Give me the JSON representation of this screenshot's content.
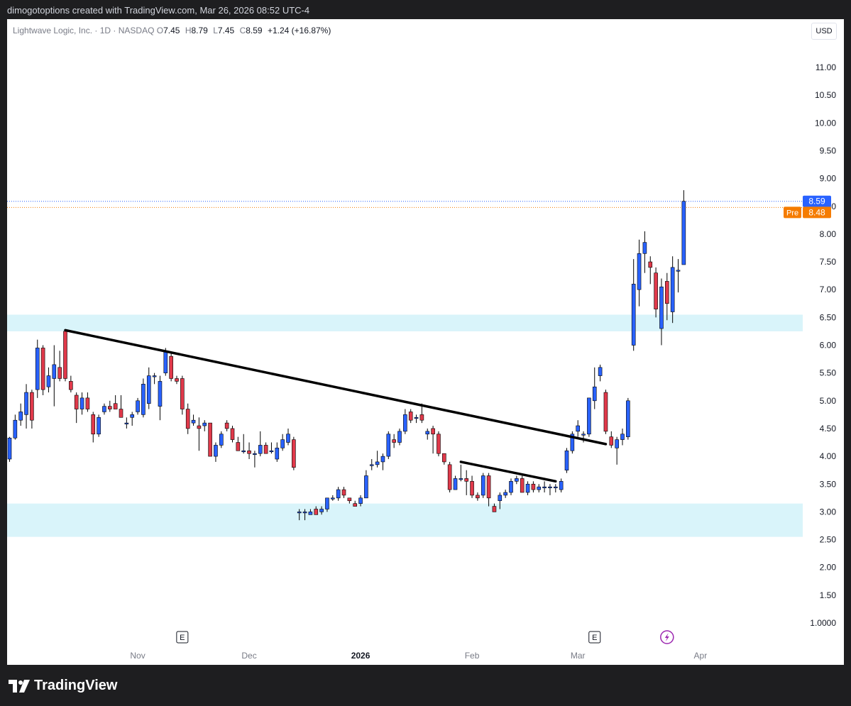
{
  "header": {
    "attribution": "dimogotoptions created with TradingView.com, Mar 26, 2026 08:52 UTC-4"
  },
  "legend": {
    "symbol": "Lightwave Logic, Inc. · 1D · NASDAQ",
    "o_label": "O",
    "o": "7.45",
    "h_label": "H",
    "h": "8.79",
    "l_label": "L",
    "l": "7.45",
    "c_label": "C",
    "c": "8.59",
    "change": "+1.24 (+16.87%)"
  },
  "currency_button": "USD",
  "price_tags": {
    "last": "8.59",
    "pre_label": "Pre",
    "pre": "8.48"
  },
  "footer": {
    "brand": "TradingView"
  },
  "colors": {
    "up": "#2962ff",
    "down": "#e0394a",
    "zone": "#d9f4fa",
    "trendline": "#000000",
    "last_tag": "#2962ff",
    "pre_tag": "#f57c00"
  },
  "chart_data": {
    "type": "candlestick",
    "y_axis_ticks": [
      "1.0000",
      "1.50",
      "2.00",
      "2.50",
      "3.00",
      "3.50",
      "4.00",
      "4.50",
      "5.00",
      "5.50",
      "6.00",
      "6.50",
      "7.00",
      "7.50",
      "8.00",
      "8.50",
      "9.00",
      "9.50",
      "10.00",
      "10.50",
      "11.00"
    ],
    "y_tick_values": [
      1.0,
      1.5,
      2.0,
      2.5,
      3.0,
      3.5,
      4.0,
      4.5,
      5.0,
      5.5,
      6.0,
      6.5,
      7.0,
      7.5,
      8.0,
      8.5,
      9.0,
      9.5,
      10.0,
      10.5,
      11.0
    ],
    "x_axis_ticks": [
      {
        "label": "Nov",
        "bar": 23,
        "bold": false
      },
      {
        "label": "Dec",
        "bar": 43,
        "bold": false
      },
      {
        "label": "2026",
        "bar": 63,
        "bold": true
      },
      {
        "label": "Feb",
        "bar": 83,
        "bold": false
      },
      {
        "label": "Mar",
        "bar": 102,
        "bold": false
      },
      {
        "label": "Apr",
        "bar": 124,
        "bold": false
      }
    ],
    "event_markers": [
      {
        "type": "earnings",
        "label": "E",
        "bar": 31
      },
      {
        "type": "earnings",
        "label": "E",
        "bar": 105
      },
      {
        "type": "dividend-icon",
        "label": "",
        "bar": 118
      }
    ],
    "zones": [
      {
        "low": 6.25,
        "high": 6.55
      },
      {
        "low": 2.55,
        "high": 3.15
      }
    ],
    "trendlines": [
      {
        "from": {
          "bar": 10,
          "price": 6.27
        },
        "to": {
          "bar": 107,
          "price": 4.22
        }
      },
      {
        "from": {
          "bar": 81,
          "price": 3.9
        },
        "to": {
          "bar": 98,
          "price": 3.55
        }
      }
    ],
    "last_price": 8.59,
    "pre_price": 8.48,
    "candles": [
      {
        "o": 3.95,
        "h": 4.35,
        "l": 3.9,
        "c": 4.33
      },
      {
        "o": 4.33,
        "h": 4.75,
        "l": 4.3,
        "c": 4.65
      },
      {
        "o": 4.65,
        "h": 4.95,
        "l": 4.55,
        "c": 4.8
      },
      {
        "o": 4.75,
        "h": 5.3,
        "l": 4.5,
        "c": 5.15
      },
      {
        "o": 5.15,
        "h": 5.2,
        "l": 4.5,
        "c": 4.65
      },
      {
        "o": 5.2,
        "h": 6.1,
        "l": 5.05,
        "c": 5.95
      },
      {
        "o": 5.95,
        "h": 6.0,
        "l": 5.1,
        "c": 5.2
      },
      {
        "o": 5.25,
        "h": 5.6,
        "l": 5.15,
        "c": 5.45
      },
      {
        "o": 5.4,
        "h": 6.0,
        "l": 4.9,
        "c": 5.65
      },
      {
        "o": 5.6,
        "h": 5.9,
        "l": 5.35,
        "c": 5.4
      },
      {
        "o": 6.25,
        "h": 6.27,
        "l": 5.35,
        "c": 5.4
      },
      {
        "o": 5.35,
        "h": 5.45,
        "l": 5.15,
        "c": 5.2
      },
      {
        "o": 5.1,
        "h": 5.15,
        "l": 4.6,
        "c": 4.85
      },
      {
        "o": 4.85,
        "h": 5.15,
        "l": 4.75,
        "c": 5.05
      },
      {
        "o": 5.05,
        "h": 5.15,
        "l": 4.8,
        "c": 4.85
      },
      {
        "o": 4.75,
        "h": 4.8,
        "l": 4.25,
        "c": 4.4
      },
      {
        "o": 4.4,
        "h": 4.75,
        "l": 4.35,
        "c": 4.7
      },
      {
        "o": 4.8,
        "h": 4.95,
        "l": 4.75,
        "c": 4.9
      },
      {
        "o": 4.9,
        "h": 5.0,
        "l": 4.8,
        "c": 4.85
      },
      {
        "o": 4.95,
        "h": 5.1,
        "l": 4.85,
        "c": 4.85
      },
      {
        "o": 4.85,
        "h": 5.1,
        "l": 4.7,
        "c": 4.7
      },
      {
        "o": 4.6,
        "h": 4.7,
        "l": 4.5,
        "c": 4.6
      },
      {
        "o": 4.7,
        "h": 4.8,
        "l": 4.55,
        "c": 4.75
      },
      {
        "o": 4.8,
        "h": 5.05,
        "l": 4.75,
        "c": 5.0
      },
      {
        "o": 4.75,
        "h": 5.4,
        "l": 4.7,
        "c": 5.3
      },
      {
        "o": 4.95,
        "h": 5.6,
        "l": 4.85,
        "c": 5.45
      },
      {
        "o": 5.45,
        "h": 5.5,
        "l": 5.3,
        "c": 5.45
      },
      {
        "o": 4.9,
        "h": 5.45,
        "l": 4.65,
        "c": 5.35
      },
      {
        "o": 5.5,
        "h": 5.95,
        "l": 5.45,
        "c": 5.9
      },
      {
        "o": 5.8,
        "h": 5.85,
        "l": 5.35,
        "c": 5.4
      },
      {
        "o": 5.4,
        "h": 5.45,
        "l": 5.3,
        "c": 5.35
      },
      {
        "o": 5.4,
        "h": 5.45,
        "l": 4.75,
        "c": 4.85
      },
      {
        "o": 4.85,
        "h": 4.95,
        "l": 4.4,
        "c": 4.5
      },
      {
        "o": 4.6,
        "h": 4.75,
        "l": 4.55,
        "c": 4.65
      },
      {
        "o": 4.55,
        "h": 4.7,
        "l": 4.1,
        "c": 4.5
      },
      {
        "o": 4.55,
        "h": 4.65,
        "l": 4.45,
        "c": 4.6
      },
      {
        "o": 4.6,
        "h": 4.6,
        "l": 4.0,
        "c": 4.0
      },
      {
        "o": 4.0,
        "h": 4.25,
        "l": 3.9,
        "c": 4.2
      },
      {
        "o": 4.2,
        "h": 4.45,
        "l": 4.15,
        "c": 4.4
      },
      {
        "o": 4.6,
        "h": 4.65,
        "l": 4.45,
        "c": 4.5
      },
      {
        "o": 4.5,
        "h": 4.55,
        "l": 4.25,
        "c": 4.3
      },
      {
        "o": 4.25,
        "h": 4.35,
        "l": 4.1,
        "c": 4.1
      },
      {
        "o": 4.1,
        "h": 4.4,
        "l": 4.05,
        "c": 4.1
      },
      {
        "o": 4.1,
        "h": 4.25,
        "l": 3.95,
        "c": 4.05
      },
      {
        "o": 4.05,
        "h": 4.1,
        "l": 3.8,
        "c": 4.05
      },
      {
        "o": 4.05,
        "h": 4.45,
        "l": 4.0,
        "c": 4.2
      },
      {
        "o": 4.2,
        "h": 4.25,
        "l": 4.05,
        "c": 4.05
      },
      {
        "o": 4.1,
        "h": 4.25,
        "l": 4.05,
        "c": 4.1
      },
      {
        "o": 3.95,
        "h": 4.25,
        "l": 3.9,
        "c": 4.15
      },
      {
        "o": 4.15,
        "h": 4.4,
        "l": 4.1,
        "c": 4.3
      },
      {
        "o": 4.25,
        "h": 4.5,
        "l": 4.2,
        "c": 4.4
      },
      {
        "o": 4.3,
        "h": 4.35,
        "l": 3.75,
        "c": 3.8
      },
      {
        "o": 3.0,
        "h": 3.05,
        "l": 2.85,
        "c": 3.0
      },
      {
        "o": 3.0,
        "h": 3.05,
        "l": 2.85,
        "c": 3.0
      },
      {
        "o": 2.95,
        "h": 3.05,
        "l": 2.95,
        "c": 3.0
      },
      {
        "o": 3.05,
        "h": 3.1,
        "l": 2.95,
        "c": 2.95
      },
      {
        "o": 3.0,
        "h": 3.1,
        "l": 2.95,
        "c": 3.05
      },
      {
        "o": 3.05,
        "h": 3.25,
        "l": 3.0,
        "c": 3.25
      },
      {
        "o": 3.25,
        "h": 3.3,
        "l": 3.2,
        "c": 3.25
      },
      {
        "o": 3.25,
        "h": 3.45,
        "l": 3.2,
        "c": 3.4
      },
      {
        "o": 3.4,
        "h": 3.45,
        "l": 3.25,
        "c": 3.3
      },
      {
        "o": 3.25,
        "h": 3.25,
        "l": 3.15,
        "c": 3.2
      },
      {
        "o": 3.15,
        "h": 3.2,
        "l": 3.1,
        "c": 3.1
      },
      {
        "o": 3.15,
        "h": 3.3,
        "l": 3.1,
        "c": 3.25
      },
      {
        "o": 3.25,
        "h": 3.75,
        "l": 3.25,
        "c": 3.65
      },
      {
        "o": 3.85,
        "h": 3.95,
        "l": 3.75,
        "c": 3.85
      },
      {
        "o": 3.85,
        "h": 4.1,
        "l": 3.8,
        "c": 3.9
      },
      {
        "o": 3.9,
        "h": 4.05,
        "l": 3.75,
        "c": 4.0
      },
      {
        "o": 4.0,
        "h": 4.45,
        "l": 3.95,
        "c": 4.4
      },
      {
        "o": 4.3,
        "h": 4.4,
        "l": 4.15,
        "c": 4.25
      },
      {
        "o": 4.25,
        "h": 4.5,
        "l": 4.2,
        "c": 4.45
      },
      {
        "o": 4.45,
        "h": 4.85,
        "l": 4.4,
        "c": 4.75
      },
      {
        "o": 4.8,
        "h": 4.85,
        "l": 4.6,
        "c": 4.65
      },
      {
        "o": 4.7,
        "h": 4.75,
        "l": 4.6,
        "c": 4.7
      },
      {
        "o": 4.75,
        "h": 4.95,
        "l": 4.6,
        "c": 4.65
      },
      {
        "o": 4.4,
        "h": 4.5,
        "l": 4.3,
        "c": 4.45
      },
      {
        "o": 4.5,
        "h": 4.55,
        "l": 4.05,
        "c": 4.4
      },
      {
        "o": 4.4,
        "h": 4.45,
        "l": 4.0,
        "c": 4.05
      },
      {
        "o": 4.05,
        "h": 4.05,
        "l": 3.85,
        "c": 3.9
      },
      {
        "o": 3.85,
        "h": 3.9,
        "l": 3.35,
        "c": 3.4
      },
      {
        "o": 3.4,
        "h": 3.65,
        "l": 3.4,
        "c": 3.6
      },
      {
        "o": 3.6,
        "h": 3.85,
        "l": 3.55,
        "c": 3.6
      },
      {
        "o": 3.6,
        "h": 3.75,
        "l": 3.3,
        "c": 3.55
      },
      {
        "o": 3.55,
        "h": 3.65,
        "l": 3.25,
        "c": 3.3
      },
      {
        "o": 3.3,
        "h": 3.35,
        "l": 3.2,
        "c": 3.25
      },
      {
        "o": 3.3,
        "h": 3.7,
        "l": 3.25,
        "c": 3.65
      },
      {
        "o": 3.65,
        "h": 3.7,
        "l": 3.1,
        "c": 3.25
      },
      {
        "o": 3.1,
        "h": 3.15,
        "l": 3.0,
        "c": 3.0
      },
      {
        "o": 3.2,
        "h": 3.35,
        "l": 3.05,
        "c": 3.3
      },
      {
        "o": 3.3,
        "h": 3.4,
        "l": 3.25,
        "c": 3.35
      },
      {
        "o": 3.35,
        "h": 3.6,
        "l": 3.3,
        "c": 3.55
      },
      {
        "o": 3.55,
        "h": 3.65,
        "l": 3.5,
        "c": 3.6
      },
      {
        "o": 3.6,
        "h": 3.65,
        "l": 3.35,
        "c": 3.35
      },
      {
        "o": 3.35,
        "h": 3.55,
        "l": 3.3,
        "c": 3.5
      },
      {
        "o": 3.5,
        "h": 3.55,
        "l": 3.35,
        "c": 3.4
      },
      {
        "o": 3.4,
        "h": 3.5,
        "l": 3.35,
        "c": 3.45
      },
      {
        "o": 3.45,
        "h": 3.55,
        "l": 3.35,
        "c": 3.45
      },
      {
        "o": 3.45,
        "h": 3.5,
        "l": 3.3,
        "c": 3.45
      },
      {
        "o": 3.45,
        "h": 3.5,
        "l": 3.35,
        "c": 3.45
      },
      {
        "o": 3.4,
        "h": 3.6,
        "l": 3.35,
        "c": 3.55
      },
      {
        "o": 3.75,
        "h": 4.15,
        "l": 3.7,
        "c": 4.1
      },
      {
        "o": 4.1,
        "h": 4.45,
        "l": 4.05,
        "c": 4.4
      },
      {
        "o": 4.45,
        "h": 4.65,
        "l": 4.35,
        "c": 4.55
      },
      {
        "o": 4.4,
        "h": 4.45,
        "l": 4.25,
        "c": 4.4
      },
      {
        "o": 4.4,
        "h": 5.05,
        "l": 4.35,
        "c": 5.05
      },
      {
        "o": 5.0,
        "h": 5.6,
        "l": 4.85,
        "c": 5.25
      },
      {
        "o": 5.45,
        "h": 5.65,
        "l": 5.35,
        "c": 5.6
      },
      {
        "o": 5.15,
        "h": 5.2,
        "l": 4.4,
        "c": 4.45
      },
      {
        "o": 4.35,
        "h": 4.45,
        "l": 4.15,
        "c": 4.2
      },
      {
        "o": 4.15,
        "h": 4.35,
        "l": 3.85,
        "c": 4.3
      },
      {
        "o": 4.3,
        "h": 4.5,
        "l": 4.2,
        "c": 4.4
      },
      {
        "o": 4.35,
        "h": 5.05,
        "l": 4.3,
        "c": 5.0
      },
      {
        "o": 6.0,
        "h": 7.55,
        "l": 5.9,
        "c": 7.1
      },
      {
        "o": 7.0,
        "h": 7.9,
        "l": 6.7,
        "c": 7.65
      },
      {
        "o": 7.65,
        "h": 8.05,
        "l": 7.3,
        "c": 7.85
      },
      {
        "o": 7.5,
        "h": 7.6,
        "l": 7.1,
        "c": 7.4
      },
      {
        "o": 7.3,
        "h": 7.4,
        "l": 6.5,
        "c": 6.65
      },
      {
        "o": 6.3,
        "h": 7.2,
        "l": 6.0,
        "c": 7.05
      },
      {
        "o": 7.15,
        "h": 7.3,
        "l": 6.45,
        "c": 6.75
      },
      {
        "o": 6.6,
        "h": 7.6,
        "l": 6.4,
        "c": 7.4
      },
      {
        "o": 7.35,
        "h": 7.55,
        "l": 6.95,
        "c": 7.35
      },
      {
        "o": 7.45,
        "h": 8.79,
        "l": 7.45,
        "c": 8.59
      }
    ]
  }
}
